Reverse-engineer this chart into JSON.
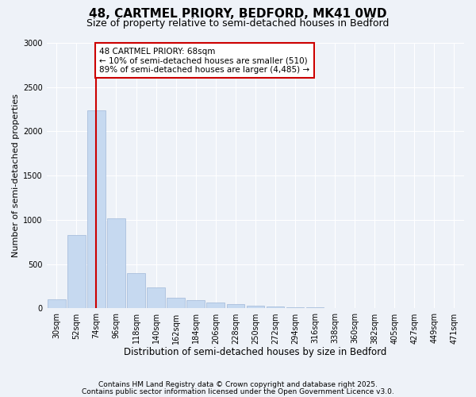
{
  "title1": "48, CARTMEL PRIORY, BEDFORD, MK41 0WD",
  "title2": "Size of property relative to semi-detached houses in Bedford",
  "xlabel": "Distribution of semi-detached houses by size in Bedford",
  "ylabel": "Number of semi-detached properties",
  "categories": [
    "30sqm",
    "52sqm",
    "74sqm",
    "96sqm",
    "118sqm",
    "140sqm",
    "162sqm",
    "184sqm",
    "206sqm",
    "228sqm",
    "250sqm",
    "272sqm",
    "294sqm",
    "316sqm",
    "338sqm",
    "360sqm",
    "382sqm",
    "405sqm",
    "427sqm",
    "449sqm",
    "471sqm"
  ],
  "values": [
    100,
    830,
    2240,
    1020,
    400,
    240,
    120,
    90,
    65,
    50,
    30,
    20,
    15,
    10,
    8,
    5,
    3,
    2,
    2,
    1,
    1
  ],
  "bar_color": "#c6d9f0",
  "bar_edge_color": "#a0b8d8",
  "vline_color": "#cc0000",
  "vline_x": 2.0,
  "annotation_text": "48 CARTMEL PRIORY: 68sqm\n← 10% of semi-detached houses are smaller (510)\n89% of semi-detached houses are larger (4,485) →",
  "annotation_box_color": "#ffffff",
  "annotation_box_edge_color": "#cc0000",
  "ylim": [
    0,
    3000
  ],
  "yticks": [
    0,
    500,
    1000,
    1500,
    2000,
    2500,
    3000
  ],
  "footnote1": "Contains HM Land Registry data © Crown copyright and database right 2025.",
  "footnote2": "Contains public sector information licensed under the Open Government Licence v3.0.",
  "bg_color": "#eef2f8",
  "plot_bg_color": "#eef2f8",
  "title1_fontsize": 11,
  "title2_fontsize": 9,
  "xlabel_fontsize": 8.5,
  "ylabel_fontsize": 8,
  "tick_fontsize": 7,
  "footnote_fontsize": 6.5,
  "annotation_fontsize": 7.5
}
